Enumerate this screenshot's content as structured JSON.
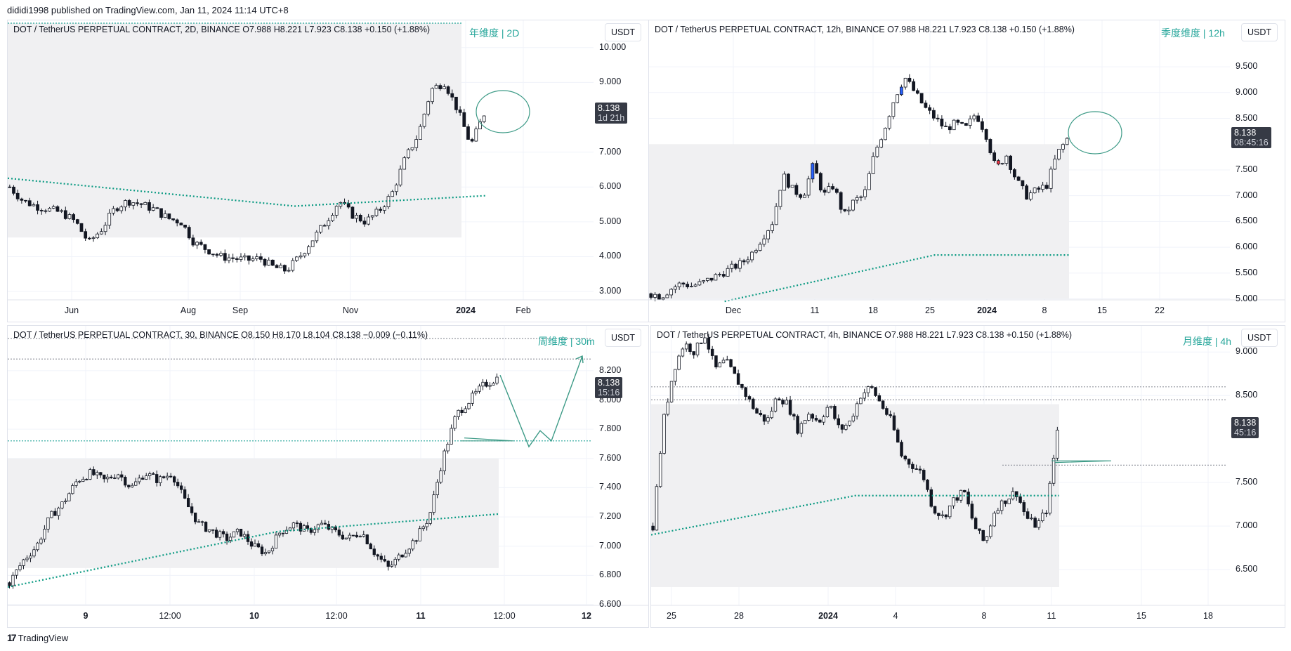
{
  "published": "dididi1998 published on TradingView.com, Jan 11, 2024 11:14 UTC+8",
  "footer": {
    "brand": "TradingView",
    "logo_icon": "tradingview-logo-icon"
  },
  "colors": {
    "accent": "#26a69a",
    "vwap": "#089981",
    "tag_bg": "#363a45",
    "up_body": "#ffffff",
    "down_body": "#131722",
    "blue_candle": "#2962ff",
    "red_candle": "#f23645"
  },
  "panels": [
    {
      "legend": "DOT / TetherUS PERPETUAL CONTRACT, 2D, BINANCE  O7.988  H8.221  L7.923  C8.138  +0.150 (+1.88%)",
      "label": "年维度 | 2D",
      "currency": "USDT",
      "last_price": "8.138",
      "countdown": "1d 21h",
      "y_ticks": [
        "10.000",
        "9.000",
        "7.000",
        "6.000",
        "5.000",
        "4.000",
        "3.000"
      ],
      "x_ticks": [
        "Jun",
        "Aug",
        "Sep",
        "Nov",
        "2024",
        "Feb"
      ],
      "price_path": [
        6.0,
        5.6,
        5.45,
        5.35,
        5.25,
        5.0,
        4.4,
        4.8,
        5.4,
        5.6,
        5.5,
        5.35,
        5.1,
        5.0,
        4.4,
        4.2,
        4.0,
        3.95,
        3.9,
        3.95,
        3.7,
        3.6,
        4.0,
        4.5,
        5.0,
        5.6,
        5.2,
        5.0,
        5.3,
        5.8,
        6.8,
        7.5,
        8.8,
        9.0,
        8.2,
        7.2,
        8.1
      ]
    },
    {
      "legend": "DOT / TetherUS PERPETUAL CONTRACT, 12h, BINANCE  O7.988  H8.221  L7.923  C8.138  +0.150 (+1.88%)",
      "label": "季度维度 | 12h",
      "currency": "USDT",
      "last_price": "8.138",
      "countdown": "08:45:16",
      "y_ticks": [
        "9.500",
        "9.000",
        "8.500",
        "7.500",
        "7.000",
        "6.500",
        "6.000",
        "5.500",
        "5.000"
      ],
      "x_ticks": [
        "Dec",
        "11",
        "18",
        "25",
        "2024",
        "8",
        "15",
        "22"
      ],
      "price_path": [
        5.1,
        5.05,
        5.2,
        5.3,
        5.25,
        5.3,
        5.4,
        5.5,
        5.6,
        5.7,
        5.9,
        6.2,
        6.5,
        7.4,
        7.1,
        7.0,
        7.6,
        7.0,
        7.2,
        6.6,
        6.9,
        7.0,
        7.8,
        8.3,
        8.9,
        9.3,
        9.0,
        8.7,
        8.5,
        8.3,
        8.4,
        8.3,
        8.6,
        8.2,
        7.5,
        7.8,
        7.3,
        7.0,
        7.1,
        7.2,
        7.8,
        8.1
      ]
    },
    {
      "legend": "DOT / TetherUS PERPETUAL CONTRACT, 30, BINANCE  O8.150  H8.170  L8.104  C8.138  −0.009 (−0.11%)",
      "label": "周维度 | 30m",
      "currency": "USDT",
      "last_price": "8.138",
      "countdown": "15:16",
      "y_ticks": [
        "8.200",
        "8.000",
        "7.800",
        "7.600",
        "7.400",
        "7.200",
        "7.000",
        "6.800",
        "6.600"
      ],
      "x_ticks": [
        "9",
        "12:00",
        "10",
        "12:00",
        "11",
        "12:00",
        "12"
      ],
      "price_path": [
        6.75,
        6.9,
        7.0,
        7.2,
        7.3,
        7.45,
        7.5,
        7.45,
        7.5,
        7.4,
        7.5,
        7.45,
        7.5,
        7.3,
        7.15,
        7.1,
        7.05,
        7.1,
        7.0,
        6.95,
        7.1,
        7.15,
        7.1,
        7.15,
        7.1,
        7.05,
        7.1,
        6.95,
        6.85,
        6.95,
        7.05,
        7.2,
        7.6,
        7.9,
        8.0,
        8.1,
        8.15
      ]
    },
    {
      "legend": "DOT / TetherUS PERPETUAL CONTRACT, 4h, BINANCE  O7.988  H8.221  L7.923  C8.138  +0.150 (+1.88%)",
      "label": "月维度 | 4h",
      "currency": "USDT",
      "last_price": "8.138",
      "countdown": "45:16",
      "y_ticks": [
        "9.000",
        "8.500",
        "7.500",
        "7.000",
        "6.500"
      ],
      "x_ticks": [
        "25",
        "28",
        "2024",
        "4",
        "8",
        "11",
        "15",
        "18"
      ],
      "price_path": [
        7.0,
        8.2,
        8.8,
        9.1,
        9.0,
        9.2,
        8.8,
        8.9,
        8.7,
        8.5,
        8.3,
        8.2,
        8.5,
        8.4,
        8.1,
        8.3,
        8.2,
        8.4,
        8.1,
        8.2,
        8.5,
        8.6,
        8.4,
        8.2,
        7.8,
        7.7,
        7.6,
        7.2,
        7.1,
        7.3,
        7.4,
        7.0,
        6.8,
        7.2,
        7.3,
        7.4,
        7.1,
        7.0,
        7.2,
        8.1
      ]
    }
  ]
}
